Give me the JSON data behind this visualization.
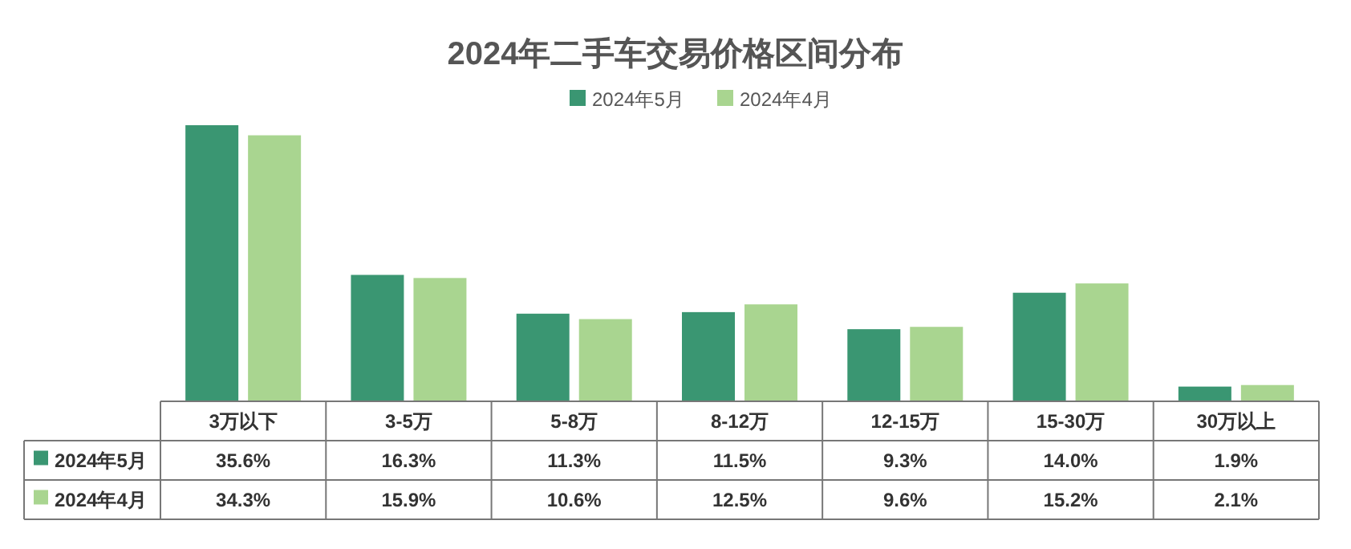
{
  "chart_data": {
    "type": "bar",
    "title": "2024年二手车交易价格区间分布",
    "legend": "top",
    "categories": [
      "3万以下",
      "3-5万",
      "5-8万",
      "8-12万",
      "12-15万",
      "15-30万",
      "30万以上"
    ],
    "series": [
      {
        "name": "2024年5月",
        "color": "#3a9672",
        "values": [
          35.6,
          16.3,
          11.3,
          11.5,
          9.3,
          14.0,
          1.9
        ],
        "value_labels": [
          "35.6%",
          "16.3%",
          "11.3%",
          "11.5%",
          "9.3%",
          "14.0%",
          "1.9%"
        ]
      },
      {
        "name": "2024年4月",
        "color": "#a9d590",
        "values": [
          34.3,
          15.9,
          10.6,
          12.5,
          9.6,
          15.2,
          2.1
        ],
        "value_labels": [
          "34.3%",
          "15.9%",
          "10.6%",
          "12.5%",
          "9.6%",
          "15.2%",
          "2.1%"
        ]
      }
    ]
  }
}
